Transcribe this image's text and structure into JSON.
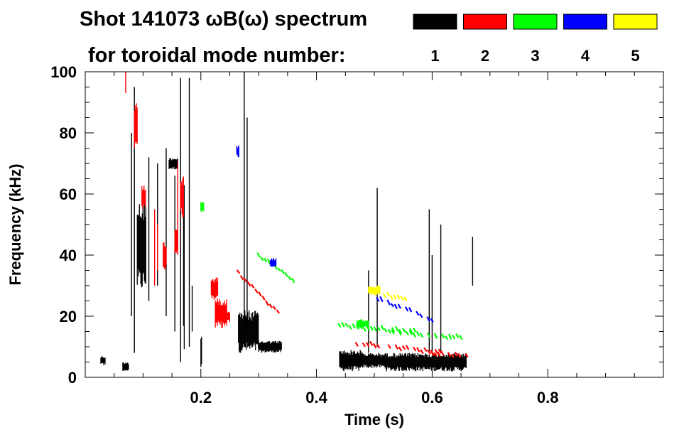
{
  "chart_data": {
    "type": "heatmap",
    "title_line1": "Shot 141073 ωB(ω) spectrum",
    "title_line2": "for toroidal mode number:",
    "xlabel": "Time (s)",
    "ylabel": "Frequency (kHz)",
    "xlim": [
      0.0,
      1.0
    ],
    "ylim": [
      0,
      100
    ],
    "x_ticks": [
      0.2,
      0.4,
      0.6,
      0.8
    ],
    "x_tick_labels": [
      "0.2",
      "0.4",
      "0.6",
      "0.8"
    ],
    "y_ticks": [
      0,
      20,
      40,
      60,
      80,
      100
    ],
    "y_tick_labels": [
      "0",
      "20",
      "40",
      "60",
      "80",
      "100"
    ],
    "legend": [
      {
        "mode": "1",
        "color": "#000000"
      },
      {
        "mode": "2",
        "color": "#ff0000"
      },
      {
        "mode": "3",
        "color": "#00ff00"
      },
      {
        "mode": "4",
        "color": "#0000ff"
      },
      {
        "mode": "5",
        "color": "#ffff00"
      }
    ],
    "series": [
      {
        "name": "n=1",
        "color": "#000000",
        "blobs": [
          {
            "t": [
              0.09,
              0.105
            ],
            "f": [
              28,
              58
            ]
          },
          {
            "t": [
              0.17,
              0.172
            ],
            "f": [
              2,
              70
            ]
          },
          {
            "t": [
              0.145,
              0.16
            ],
            "f": [
              68,
              72
            ]
          },
          {
            "t": [
              0.265,
              0.3
            ],
            "f": [
              8,
              22
            ]
          },
          {
            "t": [
              0.3,
              0.34
            ],
            "f": [
              8,
              12
            ]
          },
          {
            "t": [
              0.44,
              0.48
            ],
            "f": [
              2,
              9
            ]
          },
          {
            "t": [
              0.48,
              0.52
            ],
            "f": [
              3,
              8
            ]
          },
          {
            "t": [
              0.52,
              0.66
            ],
            "f": [
              2,
              8
            ]
          },
          {
            "t": [
              0.2,
              0.202
            ],
            "f": [
              3,
              15
            ]
          },
          {
            "t": [
              0.027,
              0.035
            ],
            "f": [
              4,
              7
            ]
          },
          {
            "t": [
              0.065,
              0.075
            ],
            "f": [
              2,
              5
            ]
          }
        ],
        "lines": [
          {
            "t": 0.08,
            "f": [
              20,
              80
            ]
          },
          {
            "t": 0.085,
            "f": [
              8,
              95
            ]
          },
          {
            "t": 0.11,
            "f": [
              25,
              72
            ]
          },
          {
            "t": 0.125,
            "f": [
              30,
              70
            ]
          },
          {
            "t": 0.14,
            "f": [
              20,
              75
            ]
          },
          {
            "t": 0.155,
            "f": [
              15,
              66
            ]
          },
          {
            "t": 0.165,
            "f": [
              5,
              98
            ]
          },
          {
            "t": 0.18,
            "f": [
              10,
              98
            ]
          },
          {
            "t": 0.185,
            "f": [
              15,
              30
            ]
          },
          {
            "t": 0.275,
            "f": [
              10,
              100
            ]
          },
          {
            "t": 0.28,
            "f": [
              15,
              85
            ]
          },
          {
            "t": 0.49,
            "f": [
              8,
              35
            ]
          },
          {
            "t": 0.505,
            "f": [
              10,
              62
            ]
          },
          {
            "t": 0.595,
            "f": [
              8,
              55
            ]
          },
          {
            "t": 0.6,
            "f": [
              8,
              40
            ]
          },
          {
            "t": 0.615,
            "f": [
              8,
              50
            ]
          },
          {
            "t": 0.67,
            "f": [
              30,
              46
            ]
          }
        ],
        "ridges": []
      },
      {
        "name": "n=2",
        "color": "#ff0000",
        "blobs": [
          {
            "t": [
              0.225,
              0.245
            ],
            "f": [
              16,
              26
            ]
          },
          {
            "t": [
              0.218,
              0.23
            ],
            "f": [
              25,
              33
            ]
          },
          {
            "t": [
              0.085,
              0.09
            ],
            "f": [
              75,
              90
            ]
          },
          {
            "t": [
              0.098,
              0.105
            ],
            "f": [
              55,
              63
            ]
          },
          {
            "t": [
              0.135,
              0.14
            ],
            "f": [
              35,
              45
            ]
          },
          {
            "t": [
              0.165,
              0.17
            ],
            "f": [
              52,
              66
            ]
          },
          {
            "t": [
              0.155,
              0.16
            ],
            "f": [
              40,
              50
            ]
          },
          {
            "t": [
              0.24,
              0.25
            ],
            "f": [
              18,
              22
            ]
          }
        ],
        "lines": [
          {
            "t": 0.07,
            "f": [
              93,
              100
            ]
          },
          {
            "t": 0.12,
            "f": [
              30,
              55
            ]
          },
          {
            "t": 0.125,
            "f": [
              35,
              50
            ]
          },
          {
            "t": 0.16,
            "f": [
              40,
              70
            ]
          }
        ],
        "ridges": [
          {
            "t": [
              0.265,
              0.34
            ],
            "f": [
              34,
              20
            ]
          },
          {
            "t": [
              0.47,
              0.62
            ],
            "f": [
              11,
              8
            ]
          },
          {
            "t": [
              0.6,
              0.66
            ],
            "f": [
              8,
              7
            ]
          }
        ]
      },
      {
        "name": "n=3",
        "color": "#00ff00",
        "blobs": [
          {
            "t": [
              0.47,
              0.49
            ],
            "f": [
              16,
              19
            ]
          },
          {
            "t": [
              0.2,
              0.205
            ],
            "f": [
              54,
              58
            ]
          }
        ],
        "lines": [],
        "ridges": [
          {
            "t": [
              0.3,
              0.36
            ],
            "f": [
              40,
              32
            ]
          },
          {
            "t": [
              0.44,
              0.57
            ],
            "f": [
              17,
              15
            ]
          },
          {
            "t": [
              0.52,
              0.65
            ],
            "f": [
              15,
              13
            ]
          }
        ]
      },
      {
        "name": "n=4",
        "color": "#0000ff",
        "blobs": [
          {
            "t": [
              0.32,
              0.33
            ],
            "f": [
              36,
              39
            ]
          },
          {
            "t": [
              0.262,
              0.266
            ],
            "f": [
              72,
              76
            ]
          }
        ],
        "lines": [],
        "ridges": [
          {
            "t": [
              0.5,
              0.6
            ],
            "f": [
              26,
              19
            ]
          }
        ]
      },
      {
        "name": "n=5",
        "color": "#ffff00",
        "blobs": [
          {
            "t": [
              0.49,
              0.51
            ],
            "f": [
              27,
              30
            ]
          }
        ],
        "lines": [],
        "ridges": [
          {
            "t": [
              0.5,
              0.56
            ],
            "f": [
              28,
              25
            ]
          }
        ]
      }
    ]
  }
}
